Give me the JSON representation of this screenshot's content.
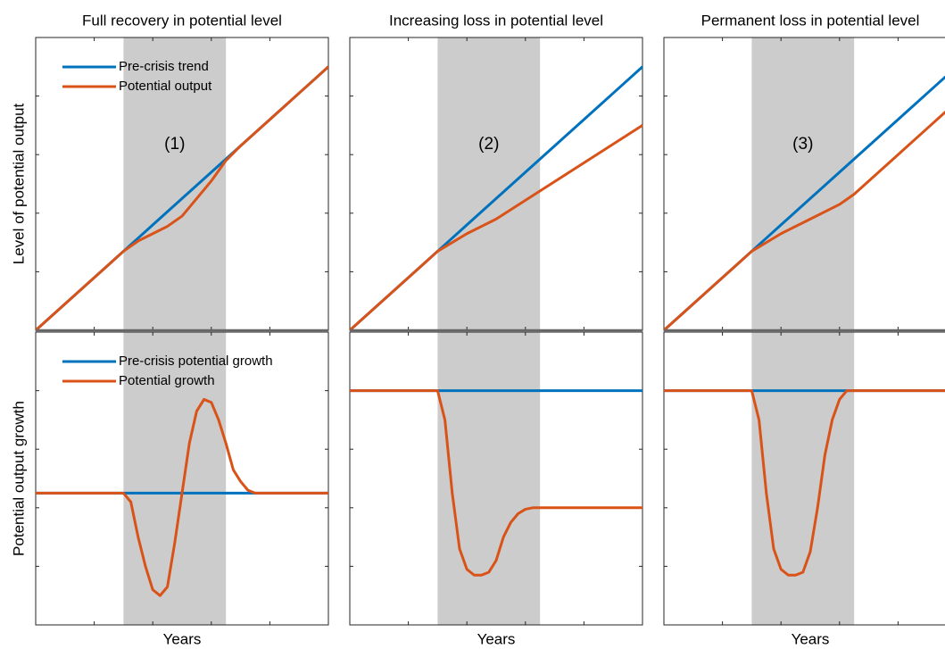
{
  "chart_data": [
    {
      "type": "line",
      "title": "Full recovery in potential level",
      "ylabel": "Level of potential output",
      "annotation": "(1)",
      "legend": "upper left",
      "shade": [
        3,
        6.5
      ],
      "x": [
        0,
        0.5,
        1,
        1.5,
        2,
        2.5,
        3,
        3.5,
        4,
        4.5,
        5,
        5.5,
        6,
        6.5,
        7,
        7.5,
        8,
        8.5,
        9,
        9.5,
        10
      ],
      "series": [
        {
          "name": "Pre-crisis trend",
          "color": "#0072BD",
          "values": [
            0,
            0.45,
            0.9,
            1.35,
            1.8,
            2.25,
            2.7,
            3.15,
            3.6,
            4.05,
            4.5,
            4.95,
            5.4,
            5.85,
            6.3,
            6.75,
            7.2,
            7.65,
            8.1,
            8.55,
            9.0
          ]
        },
        {
          "name": "Potential output",
          "color": "#D95319",
          "values": [
            0,
            0.45,
            0.9,
            1.35,
            1.8,
            2.25,
            2.7,
            3.05,
            3.3,
            3.55,
            3.9,
            4.5,
            5.1,
            5.8,
            6.3,
            6.75,
            7.2,
            7.65,
            8.1,
            8.55,
            9.0
          ]
        }
      ],
      "xlim": [
        0,
        10
      ],
      "ylim": [
        0,
        10
      ],
      "xticks": [
        2,
        4,
        6,
        8
      ],
      "yticks": [
        2,
        4,
        6,
        8
      ]
    },
    {
      "type": "line",
      "title": "Increasing loss in potential level",
      "annotation": "(2)",
      "shade": [
        3,
        6.5
      ],
      "x": [
        0,
        0.5,
        1,
        1.5,
        2,
        2.5,
        3,
        3.5,
        4,
        4.5,
        5,
        5.5,
        6,
        6.5,
        7,
        7.5,
        8,
        8.5,
        9,
        9.5,
        10
      ],
      "series": [
        {
          "color": "#0072BD",
          "values": [
            0,
            0.45,
            0.9,
            1.35,
            1.8,
            2.25,
            2.7,
            3.15,
            3.6,
            4.05,
            4.5,
            4.95,
            5.4,
            5.85,
            6.3,
            6.75,
            7.2,
            7.65,
            8.1,
            8.55,
            9.0
          ]
        },
        {
          "color": "#D95319",
          "values": [
            0,
            0.45,
            0.9,
            1.35,
            1.8,
            2.25,
            2.7,
            3.0,
            3.3,
            3.55,
            3.8,
            4.12,
            4.44,
            4.76,
            5.08,
            5.4,
            5.72,
            6.04,
            6.36,
            6.68,
            7.0
          ]
        }
      ],
      "xlim": [
        0,
        10
      ],
      "ylim": [
        0,
        10
      ],
      "xticks": [
        2,
        4,
        6,
        8
      ],
      "yticks": [
        2,
        4,
        6,
        8
      ]
    },
    {
      "type": "line",
      "title": "Permanent loss in potential level",
      "annotation": "(3)",
      "shade": [
        3,
        6.5
      ],
      "x": [
        0,
        0.5,
        1,
        1.5,
        2,
        2.5,
        3,
        3.5,
        4,
        4.5,
        5,
        5.5,
        6,
        6.5,
        7,
        7.5,
        8,
        8.5,
        9,
        9.5,
        10
      ],
      "series": [
        {
          "color": "#0072BD",
          "values": [
            0,
            0.45,
            0.9,
            1.35,
            1.8,
            2.25,
            2.7,
            3.15,
            3.6,
            4.05,
            4.5,
            4.95,
            5.4,
            5.85,
            6.3,
            6.75,
            7.2,
            7.65,
            8.1,
            8.55,
            9.0
          ]
        },
        {
          "color": "#D95319",
          "values": [
            0,
            0.45,
            0.9,
            1.35,
            1.8,
            2.25,
            2.7,
            3.0,
            3.3,
            3.55,
            3.8,
            4.05,
            4.3,
            4.65,
            5.1,
            5.55,
            6.0,
            6.45,
            6.9,
            7.35,
            7.8
          ]
        }
      ],
      "xlim": [
        0,
        10
      ],
      "ylim": [
        0,
        10
      ],
      "xticks": [
        2,
        4,
        6,
        8
      ],
      "yticks": [
        2,
        4,
        6,
        8
      ]
    },
    {
      "type": "line",
      "ylabel": "Potential output growth",
      "xlabel": "Years",
      "legend": "upper left",
      "shade": [
        3,
        6.5
      ],
      "x": [
        0,
        0.25,
        0.5,
        0.75,
        1,
        1.25,
        1.5,
        1.75,
        2,
        2.25,
        2.5,
        2.75,
        3,
        3.25,
        3.5,
        3.75,
        4,
        4.25,
        4.5,
        4.75,
        5,
        5.25,
        5.5,
        5.75,
        6,
        6.25,
        6.5,
        6.75,
        7,
        7.25,
        7.5,
        7.75,
        8,
        8.25,
        8.5,
        8.75,
        9,
        9.25,
        9.5,
        9.75,
        10
      ],
      "series": [
        {
          "name": "Pre-crisis potential growth",
          "color": "#0072BD",
          "values": [
            4.5,
            4.5,
            4.5,
            4.5,
            4.5,
            4.5,
            4.5,
            4.5,
            4.5,
            4.5,
            4.5,
            4.5,
            4.5,
            4.5,
            4.5,
            4.5,
            4.5,
            4.5,
            4.5,
            4.5,
            4.5,
            4.5,
            4.5,
            4.5,
            4.5,
            4.5,
            4.5,
            4.5,
            4.5,
            4.5,
            4.5,
            4.5,
            4.5,
            4.5,
            4.5,
            4.5,
            4.5,
            4.5,
            4.5,
            4.5,
            4.5
          ]
        },
        {
          "name": "Potential growth",
          "color": "#D95319",
          "values": [
            4.5,
            4.5,
            4.5,
            4.5,
            4.5,
            4.5,
            4.5,
            4.5,
            4.5,
            4.5,
            4.5,
            4.5,
            4.5,
            4.2,
            3.0,
            2.0,
            1.2,
            1.0,
            1.3,
            2.8,
            4.5,
            6.2,
            7.3,
            7.7,
            7.6,
            7.0,
            6.2,
            5.3,
            4.9,
            4.6,
            4.5,
            4.5,
            4.5,
            4.5,
            4.5,
            4.5,
            4.5,
            4.5,
            4.5,
            4.5,
            4.5
          ]
        }
      ],
      "xlim": [
        0,
        10
      ],
      "ylim": [
        0,
        10
      ],
      "xticks": [
        2,
        4,
        6,
        8
      ],
      "yticks": [
        2,
        4,
        6,
        8
      ]
    },
    {
      "type": "line",
      "xlabel": "Years",
      "shade": [
        3,
        6.5
      ],
      "x": [
        0,
        0.25,
        0.5,
        0.75,
        1,
        1.25,
        1.5,
        1.75,
        2,
        2.25,
        2.5,
        2.75,
        3,
        3.25,
        3.5,
        3.75,
        4,
        4.25,
        4.5,
        4.75,
        5,
        5.25,
        5.5,
        5.75,
        6,
        6.25,
        6.5,
        6.75,
        7,
        7.25,
        7.5,
        7.75,
        8,
        8.25,
        8.5,
        8.75,
        9,
        9.25,
        9.5,
        9.75,
        10
      ],
      "series": [
        {
          "color": "#0072BD",
          "values": [
            8,
            8,
            8,
            8,
            8,
            8,
            8,
            8,
            8,
            8,
            8,
            8,
            8,
            8,
            8,
            8,
            8,
            8,
            8,
            8,
            8,
            8,
            8,
            8,
            8,
            8,
            8,
            8,
            8,
            8,
            8,
            8,
            8,
            8,
            8,
            8,
            8,
            8,
            8,
            8,
            8
          ]
        },
        {
          "color": "#D95319",
          "values": [
            8,
            8,
            8,
            8,
            8,
            8,
            8,
            8,
            8,
            8,
            8,
            8,
            8,
            7.0,
            4.5,
            2.6,
            1.9,
            1.7,
            1.7,
            1.8,
            2.2,
            3.0,
            3.5,
            3.8,
            3.95,
            4.0,
            4.0,
            4.0,
            4.0,
            4.0,
            4.0,
            4.0,
            4.0,
            4.0,
            4.0,
            4.0,
            4.0,
            4.0,
            4.0,
            4.0,
            4.0
          ]
        }
      ],
      "xlim": [
        0,
        10
      ],
      "ylim": [
        0,
        10
      ],
      "xticks": [
        2,
        4,
        6,
        8
      ],
      "yticks": [
        2,
        4,
        6,
        8
      ]
    },
    {
      "type": "line",
      "xlabel": "Years",
      "shade": [
        3,
        6.5
      ],
      "x": [
        0,
        0.25,
        0.5,
        0.75,
        1,
        1.25,
        1.5,
        1.75,
        2,
        2.25,
        2.5,
        2.75,
        3,
        3.25,
        3.5,
        3.75,
        4,
        4.25,
        4.5,
        4.75,
        5,
        5.25,
        5.5,
        5.75,
        6,
        6.25,
        6.5,
        6.75,
        7,
        7.25,
        7.5,
        7.75,
        8,
        8.25,
        8.5,
        8.75,
        9,
        9.25,
        9.5,
        9.75,
        10
      ],
      "series": [
        {
          "color": "#0072BD",
          "values": [
            8,
            8,
            8,
            8,
            8,
            8,
            8,
            8,
            8,
            8,
            8,
            8,
            8,
            8,
            8,
            8,
            8,
            8,
            8,
            8,
            8,
            8,
            8,
            8,
            8,
            8,
            8,
            8,
            8,
            8,
            8,
            8,
            8,
            8,
            8,
            8,
            8,
            8,
            8,
            8,
            8
          ]
        },
        {
          "color": "#D95319",
          "values": [
            8,
            8,
            8,
            8,
            8,
            8,
            8,
            8,
            8,
            8,
            8,
            8,
            8,
            7.0,
            4.5,
            2.6,
            1.9,
            1.7,
            1.7,
            1.8,
            2.5,
            4.0,
            5.8,
            7.0,
            7.7,
            8.0,
            8.0,
            8.0,
            8.0,
            8.0,
            8.0,
            8.0,
            8.0,
            8.0,
            8.0,
            8.0,
            8.0,
            8.0,
            8.0,
            8.0,
            8.0
          ]
        }
      ],
      "xlim": [
        0,
        10
      ],
      "ylim": [
        0,
        10
      ],
      "xticks": [
        2,
        4,
        6,
        8
      ],
      "yticks": [
        2,
        4,
        6,
        8
      ]
    }
  ]
}
